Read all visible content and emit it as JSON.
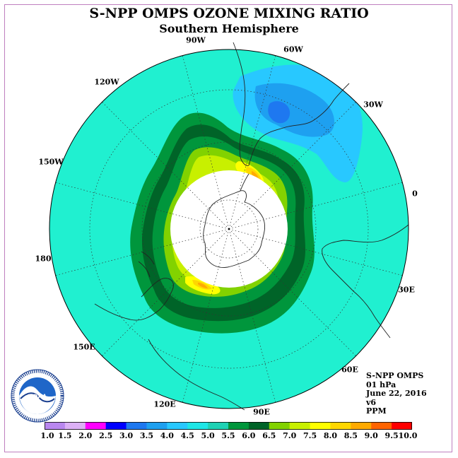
{
  "title": "S-NPP OMPS OZONE MIXING RATIO",
  "subtitle": "Southern Hemisphere",
  "longitude_labels": [
    "90W",
    "60W",
    "120W",
    "30W",
    "150W",
    "0",
    "180",
    "30E",
    "150E",
    "60E",
    "120E",
    "90E"
  ],
  "info": {
    "instrument": "S-NPP OMPS",
    "level": "01 hPa",
    "date": "June 22, 2016",
    "version": "v6",
    "units": "PPM"
  },
  "logo": {
    "text": "NOAA",
    "ring_text": "NATIONAL OCEANIC AND ATMOSPHERIC ADMINISTRATION · U.S. DEPARTMENT OF COMMERCE"
  },
  "colorbar": {
    "labels": [
      "1.0",
      "1.5",
      "2.0",
      "2.5",
      "3.0",
      "3.5",
      "4.0",
      "4.5",
      "5.0",
      "5.5",
      "6.0",
      "6.5",
      "7.0",
      "7.5",
      "8.0",
      "8.5",
      "9.0",
      "9.5",
      "10.0"
    ],
    "colors": [
      "#b987ef",
      "#dcb0f5",
      "#ff00ff",
      "#0000ff",
      "#1e78f0",
      "#1ea0f0",
      "#28c8ff",
      "#1ee6e6",
      "#1ed2b4",
      "#00963c",
      "#006428",
      "#82d200",
      "#c8f000",
      "#ffff00",
      "#ffd700",
      "#ffaa00",
      "#ff6400",
      "#ff0000",
      "#8b4513"
    ]
  },
  "map": {
    "background_level_color": "#20f0d0",
    "level_colors": {
      "low_blue": "#28c8ff",
      "lower_blue": "#1ea0f0",
      "core_blue": "#1e78f0",
      "green_55": "#00963c",
      "green_60": "#006428",
      "yellowgreen": "#82d200",
      "yellow_70": "#c8f000",
      "yellow_75": "#ffff00",
      "orange_80": "#ffd700",
      "orange_85": "#ffaa00"
    }
  }
}
